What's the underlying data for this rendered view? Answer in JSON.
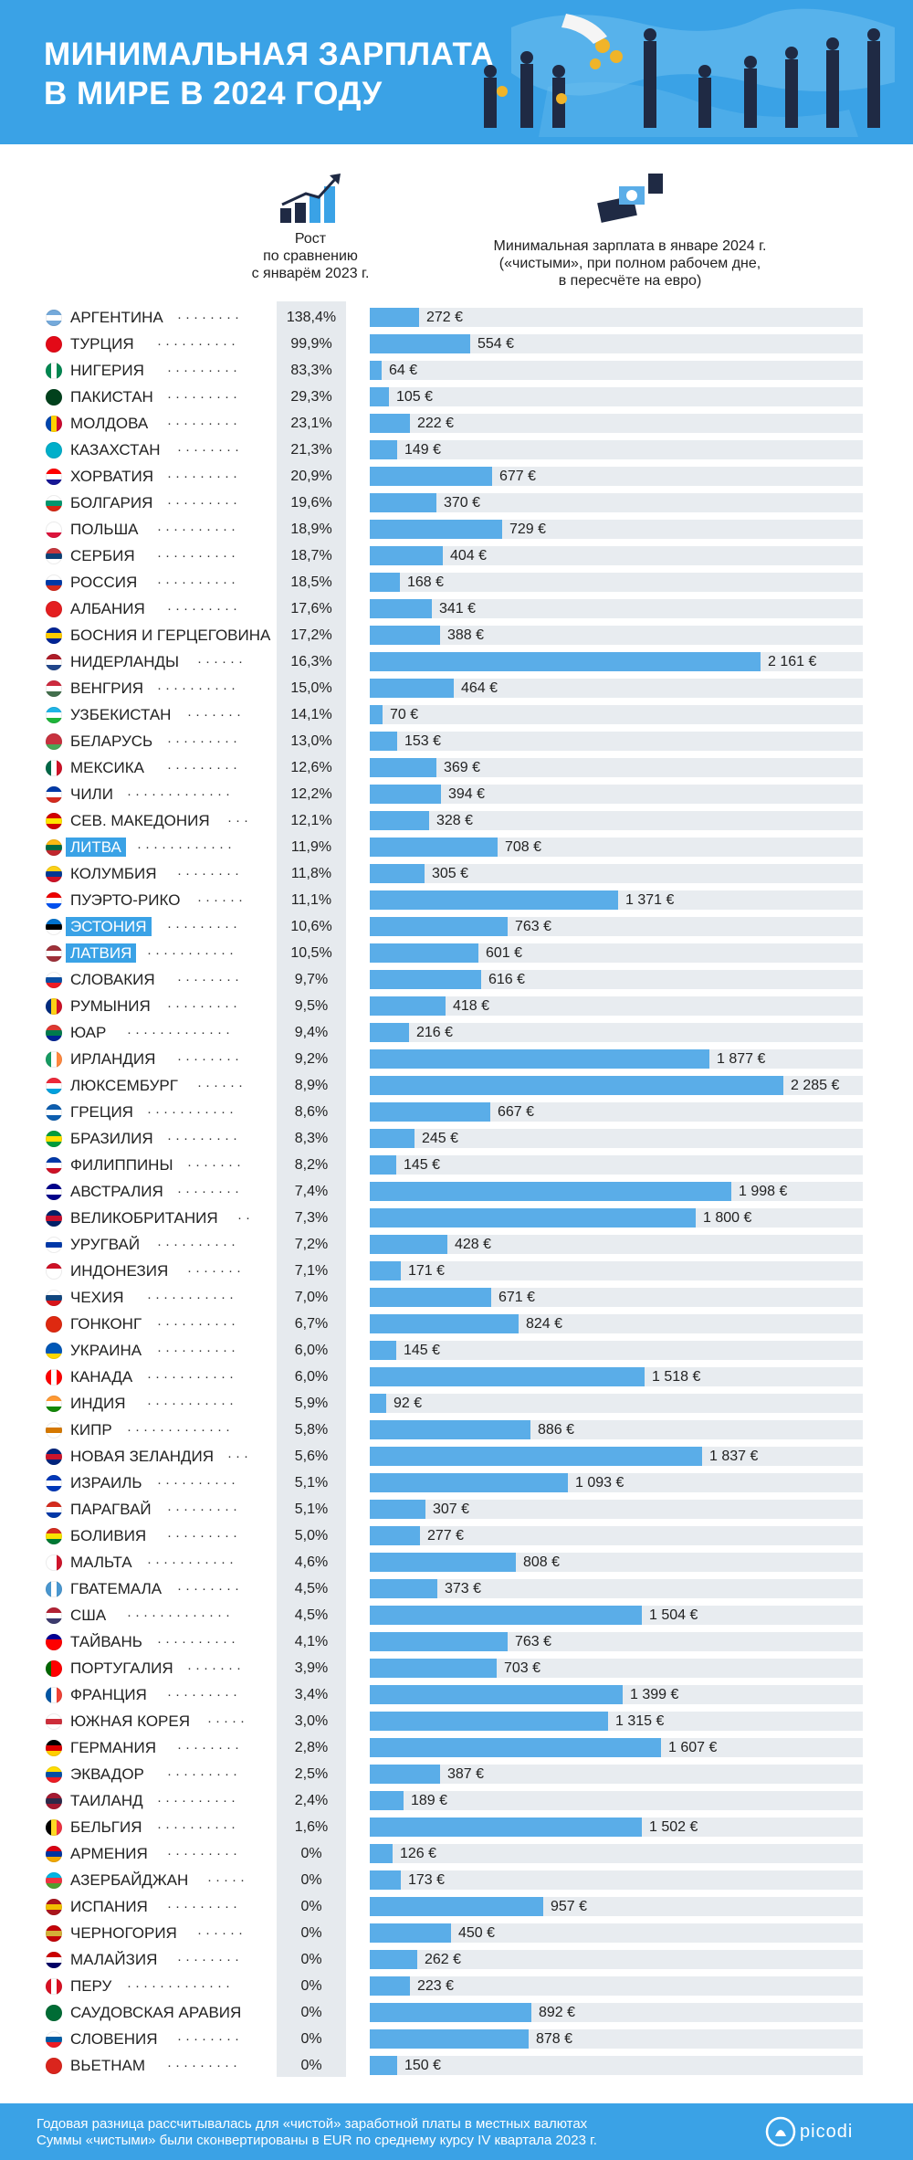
{
  "title_line1": "МИНИМАЛЬНАЯ ЗАРПЛАТА",
  "title_line2": "В МИРЕ В 2024 ГОДУ",
  "growth_header": [
    "Рост",
    "по сравнению",
    "с январём 2023 г."
  ],
  "wage_header": [
    "Минимальная зарплата в январе 2024 г.",
    "(«чистыми», при полном рабочем дне,",
    "в пересчёте на евро)"
  ],
  "footnote_line1": "Годовая разница рассчитывалась для «чистой» заработной платы в местных валютах",
  "footnote_line2": "Суммы «чистыми» были сконвертированы в EUR по среднему курсу IV квартала 2023 г.",
  "logo": "picodi",
  "colors": {
    "header": "#3aa2e6",
    "bar": "#5aade8",
    "highlight": "#3aa2e6"
  },
  "chart_data": {
    "type": "bar",
    "orientation": "horizontal",
    "unit": "€",
    "xlim": [
      0,
      2285
    ],
    "rows": [
      {
        "country": "АРГЕНТИНА",
        "growth": "138,4%",
        "wage": 272,
        "label": "272 €",
        "flag": [
          "#75aadb",
          "#ffffff",
          "#75aadb"
        ]
      },
      {
        "country": "ТУРЦИЯ",
        "growth": "99,9%",
        "wage": 554,
        "label": "554 €",
        "flag": [
          "#e30a17",
          "#e30a17",
          "#e30a17"
        ]
      },
      {
        "country": "НИГЕРИЯ",
        "growth": "83,3%",
        "wage": 64,
        "label": "64 €",
        "flag": [
          "#008751",
          "#ffffff",
          "#008751"
        ],
        "vertical": true
      },
      {
        "country": "ПАКИСТАН",
        "growth": "29,3%",
        "wage": 105,
        "label": "105 €",
        "flag": [
          "#01411c",
          "#01411c",
          "#01411c"
        ]
      },
      {
        "country": "МОЛДОВА",
        "growth": "23,1%",
        "wage": 222,
        "label": "222 €",
        "flag": [
          "#0046ae",
          "#ffd200",
          "#cc092f"
        ],
        "vertical": true
      },
      {
        "country": "КАЗАХСТАН",
        "growth": "21,3%",
        "wage": 149,
        "label": "149 €",
        "flag": [
          "#00afca",
          "#00afca",
          "#00afca"
        ]
      },
      {
        "country": "ХОРВАТИЯ",
        "growth": "20,9%",
        "wage": 677,
        "label": "677 €",
        "flag": [
          "#ff0000",
          "#ffffff",
          "#171796"
        ]
      },
      {
        "country": "БОЛГАРИЯ",
        "growth": "19,6%",
        "wage": 370,
        "label": "370 €",
        "flag": [
          "#ffffff",
          "#00966e",
          "#d62612"
        ]
      },
      {
        "country": "ПОЛЬША",
        "growth": "18,9%",
        "wage": 729,
        "label": "729 €",
        "flag": [
          "#ffffff",
          "#ffffff",
          "#dc143c"
        ]
      },
      {
        "country": "СЕРБИЯ",
        "growth": "18,7%",
        "wage": 404,
        "label": "404 €",
        "flag": [
          "#c6363c",
          "#0c4076",
          "#ffffff"
        ]
      },
      {
        "country": "РОССИЯ",
        "growth": "18,5%",
        "wage": 168,
        "label": "168 €",
        "flag": [
          "#ffffff",
          "#0039a6",
          "#d52b1e"
        ]
      },
      {
        "country": "АЛБАНИЯ",
        "growth": "17,6%",
        "wage": 341,
        "label": "341 €",
        "flag": [
          "#e41e20",
          "#e41e20",
          "#e41e20"
        ]
      },
      {
        "country": "БОСНИЯ И ГЕРЦЕГОВИНА",
        "growth": "17,2%",
        "wage": 388,
        "label": "388 €",
        "flag": [
          "#002395",
          "#fecb00",
          "#002395"
        ]
      },
      {
        "country": "НИДЕРЛАНДЫ",
        "growth": "16,3%",
        "wage": 2161,
        "label": "2 161 €",
        "flag": [
          "#ae1c28",
          "#ffffff",
          "#21468b"
        ]
      },
      {
        "country": "ВЕНГРИЯ",
        "growth": "15,0%",
        "wage": 464,
        "label": "464 €",
        "flag": [
          "#cd2a3e",
          "#ffffff",
          "#436f4d"
        ]
      },
      {
        "country": "УЗБЕКИСТАН",
        "growth": "14,1%",
        "wage": 70,
        "label": "70 €",
        "flag": [
          "#1eb4e6",
          "#ffffff",
          "#1eb53a"
        ]
      },
      {
        "country": "БЕЛАРУСЬ",
        "growth": "13,0%",
        "wage": 153,
        "label": "153 €",
        "flag": [
          "#c8313e",
          "#c8313e",
          "#4aa657"
        ]
      },
      {
        "country": "МЕКСИКА",
        "growth": "12,6%",
        "wage": 369,
        "label": "369 €",
        "flag": [
          "#006847",
          "#ffffff",
          "#ce1126"
        ],
        "vertical": true
      },
      {
        "country": "ЧИЛИ",
        "growth": "12,2%",
        "wage": 394,
        "label": "394 €",
        "flag": [
          "#0039a6",
          "#ffffff",
          "#d52b1e"
        ]
      },
      {
        "country": "СЕВ. МАКЕДОНИЯ",
        "growth": "12,1%",
        "wage": 328,
        "label": "328 €",
        "flag": [
          "#d20000",
          "#ffe600",
          "#d20000"
        ]
      },
      {
        "country": "ЛИТВА",
        "growth": "11,9%",
        "wage": 708,
        "label": "708 €",
        "flag": [
          "#fdb913",
          "#006a44",
          "#c1272d"
        ],
        "highlight": true
      },
      {
        "country": "КОЛУМБИЯ",
        "growth": "11,8%",
        "wage": 305,
        "label": "305 €",
        "flag": [
          "#fcd116",
          "#003893",
          "#ce1126"
        ]
      },
      {
        "country": "ПУЭРТО-РИКО",
        "growth": "11,1%",
        "wage": 1371,
        "label": "1 371 €",
        "flag": [
          "#ed0000",
          "#ffffff",
          "#0050f0"
        ]
      },
      {
        "country": "ЭСТОНИЯ",
        "growth": "10,6%",
        "wage": 763,
        "label": "763 €",
        "flag": [
          "#0072ce",
          "#000000",
          "#ffffff"
        ],
        "highlight": true
      },
      {
        "country": "ЛАТВИЯ",
        "growth": "10,5%",
        "wage": 601,
        "label": "601 €",
        "flag": [
          "#9e3039",
          "#ffffff",
          "#9e3039"
        ],
        "highlight": true
      },
      {
        "country": "СЛОВАКИЯ",
        "growth": "9,7%",
        "wage": 616,
        "label": "616 €",
        "flag": [
          "#ffffff",
          "#0b4ea2",
          "#ee1c25"
        ]
      },
      {
        "country": "РУМЫНИЯ",
        "growth": "9,5%",
        "wage": 418,
        "label": "418 €",
        "flag": [
          "#002b7f",
          "#fcd116",
          "#ce1126"
        ],
        "vertical": true
      },
      {
        "country": "ЮАР",
        "growth": "9,4%",
        "wage": 216,
        "label": "216 €",
        "flag": [
          "#de3831",
          "#007a4d",
          "#002395"
        ]
      },
      {
        "country": "ИРЛАНДИЯ",
        "growth": "9,2%",
        "wage": 1877,
        "label": "1 877 €",
        "flag": [
          "#169b62",
          "#ffffff",
          "#ff883e"
        ],
        "vertical": true
      },
      {
        "country": "ЛЮКСЕМБУРГ",
        "growth": "8,9%",
        "wage": 2285,
        "label": "2 285 €",
        "flag": [
          "#ed2939",
          "#ffffff",
          "#00a1de"
        ]
      },
      {
        "country": "ГРЕЦИЯ",
        "growth": "8,6%",
        "wage": 667,
        "label": "667 €",
        "flag": [
          "#0d5eaf",
          "#ffffff",
          "#0d5eaf"
        ]
      },
      {
        "country": "БРАЗИЛИЯ",
        "growth": "8,3%",
        "wage": 245,
        "label": "245 €",
        "flag": [
          "#009c3b",
          "#ffdf00",
          "#009c3b"
        ]
      },
      {
        "country": "ФИЛИППИНЫ",
        "growth": "8,2%",
        "wage": 145,
        "label": "145 €",
        "flag": [
          "#0038a8",
          "#ffffff",
          "#ce1126"
        ]
      },
      {
        "country": "АВСТРАЛИЯ",
        "growth": "7,4%",
        "wage": 1998,
        "label": "1 998 €",
        "flag": [
          "#00008b",
          "#ffffff",
          "#00008b"
        ]
      },
      {
        "country": "ВЕЛИКОБРИТАНИЯ",
        "growth": "7,3%",
        "wage": 1800,
        "label": "1 800 €",
        "flag": [
          "#012169",
          "#c8102e",
          "#012169"
        ]
      },
      {
        "country": "УРУГВАЙ",
        "growth": "7,2%",
        "wage": 428,
        "label": "428 €",
        "flag": [
          "#ffffff",
          "#0038a8",
          "#ffffff"
        ]
      },
      {
        "country": "ИНДОНЕЗИЯ",
        "growth": "7,1%",
        "wage": 171,
        "label": "171 €",
        "flag": [
          "#ce1126",
          "#ffffff",
          "#ffffff"
        ]
      },
      {
        "country": "ЧЕХИЯ",
        "growth": "7,0%",
        "wage": 671,
        "label": "671 €",
        "flag": [
          "#ffffff",
          "#11457e",
          "#d7141a"
        ]
      },
      {
        "country": "ГОНКОНГ",
        "growth": "6,7%",
        "wage": 824,
        "label": "824 €",
        "flag": [
          "#de2910",
          "#de2910",
          "#de2910"
        ]
      },
      {
        "country": "УКРАИНА",
        "growth": "6,0%",
        "wage": 145,
        "label": "145 €",
        "flag": [
          "#0057b7",
          "#0057b7",
          "#ffd700"
        ]
      },
      {
        "country": "КАНАДА",
        "growth": "6,0%",
        "wage": 1518,
        "label": "1 518 €",
        "flag": [
          "#ff0000",
          "#ffffff",
          "#ff0000"
        ],
        "vertical": true
      },
      {
        "country": "ИНДИЯ",
        "growth": "5,9%",
        "wage": 92,
        "label": "92 €",
        "flag": [
          "#ff9933",
          "#ffffff",
          "#138808"
        ]
      },
      {
        "country": "КИПР",
        "growth": "5,8%",
        "wage": 886,
        "label": "886 €",
        "flag": [
          "#ffffff",
          "#d57800",
          "#ffffff"
        ]
      },
      {
        "country": "НОВАЯ ЗЕЛАНДИЯ",
        "growth": "5,6%",
        "wage": 1837,
        "label": "1 837 €",
        "flag": [
          "#00247d",
          "#cc142b",
          "#00247d"
        ]
      },
      {
        "country": "ИЗРАИЛЬ",
        "growth": "5,1%",
        "wage": 1093,
        "label": "1 093 €",
        "flag": [
          "#0038b8",
          "#ffffff",
          "#0038b8"
        ]
      },
      {
        "country": "ПАРАГВАЙ",
        "growth": "5,1%",
        "wage": 307,
        "label": "307 €",
        "flag": [
          "#d52b1e",
          "#ffffff",
          "#0038a8"
        ]
      },
      {
        "country": "БОЛИВИЯ",
        "growth": "5,0%",
        "wage": 277,
        "label": "277 €",
        "flag": [
          "#d52b1e",
          "#f9e300",
          "#007934"
        ]
      },
      {
        "country": "МАЛЬТА",
        "growth": "4,6%",
        "wage": 808,
        "label": "808 €",
        "flag": [
          "#ffffff",
          "#ffffff",
          "#cf142b"
        ],
        "vertical": true
      },
      {
        "country": "ГВАТЕМАЛА",
        "growth": "4,5%",
        "wage": 373,
        "label": "373 €",
        "flag": [
          "#4997d0",
          "#ffffff",
          "#4997d0"
        ],
        "vertical": true
      },
      {
        "country": "США",
        "growth": "4,5%",
        "wage": 1504,
        "label": "1 504 €",
        "flag": [
          "#b22234",
          "#ffffff",
          "#3c3b6e"
        ]
      },
      {
        "country": "ТАЙВАНЬ",
        "growth": "4,1%",
        "wage": 763,
        "label": "763 €",
        "flag": [
          "#000095",
          "#fe0000",
          "#fe0000"
        ]
      },
      {
        "country": "ПОРТУГАЛИЯ",
        "growth": "3,9%",
        "wage": 703,
        "label": "703 €",
        "flag": [
          "#006600",
          "#ff0000",
          "#ff0000"
        ],
        "vertical": true
      },
      {
        "country": "ФРАНЦИЯ",
        "growth": "3,4%",
        "wage": 1399,
        "label": "1 399 €",
        "flag": [
          "#0055a4",
          "#ffffff",
          "#ef4135"
        ],
        "vertical": true
      },
      {
        "country": "ЮЖНАЯ КОРЕЯ",
        "growth": "3,0%",
        "wage": 1315,
        "label": "1 315 €",
        "flag": [
          "#ffffff",
          "#cd2e3a",
          "#ffffff"
        ]
      },
      {
        "country": "ГЕРМАНИЯ",
        "growth": "2,8%",
        "wage": 1607,
        "label": "1 607 €",
        "flag": [
          "#000000",
          "#dd0000",
          "#ffce00"
        ]
      },
      {
        "country": "ЭКВАДОР",
        "growth": "2,5%",
        "wage": 387,
        "label": "387 €",
        "flag": [
          "#ffdd00",
          "#034ea2",
          "#ed1c24"
        ]
      },
      {
        "country": "ТАИЛАНД",
        "growth": "2,4%",
        "wage": 189,
        "label": "189 €",
        "flag": [
          "#a51931",
          "#2d2a4a",
          "#a51931"
        ]
      },
      {
        "country": "БЕЛЬГИЯ",
        "growth": "1,6%",
        "wage": 1502,
        "label": "1 502 €",
        "flag": [
          "#000000",
          "#fdda24",
          "#ef3340"
        ],
        "vertical": true
      },
      {
        "country": "АРМЕНИЯ",
        "growth": "0%",
        "wage": 126,
        "label": "126 €",
        "flag": [
          "#d90012",
          "#0033a0",
          "#f2a800"
        ]
      },
      {
        "country": "АЗЕРБАЙДЖАН",
        "growth": "0%",
        "wage": 173,
        "label": "173 €",
        "flag": [
          "#00b5e2",
          "#ef3340",
          "#509e2f"
        ]
      },
      {
        "country": "ИСПАНИЯ",
        "growth": "0%",
        "wage": 957,
        "label": "957 €",
        "flag": [
          "#aa151b",
          "#f1bf00",
          "#aa151b"
        ]
      },
      {
        "country": "ЧЕРНОГОРИЯ",
        "growth": "0%",
        "wage": 450,
        "label": "450 €",
        "flag": [
          "#c40308",
          "#d4af37",
          "#c40308"
        ]
      },
      {
        "country": "МАЛАЙЗИЯ",
        "growth": "0%",
        "wage": 262,
        "label": "262 €",
        "flag": [
          "#cc0001",
          "#ffffff",
          "#010066"
        ]
      },
      {
        "country": "ПЕРУ",
        "growth": "0%",
        "wage": 223,
        "label": "223 €",
        "flag": [
          "#d91023",
          "#ffffff",
          "#d91023"
        ],
        "vertical": true
      },
      {
        "country": "САУДОВСКАЯ АРАВИЯ",
        "growth": "0%",
        "wage": 892,
        "label": "892 €",
        "flag": [
          "#006c35",
          "#006c35",
          "#006c35"
        ]
      },
      {
        "country": "СЛОВЕНИЯ",
        "growth": "0%",
        "wage": 878,
        "label": "878 €",
        "flag": [
          "#ffffff",
          "#005da4",
          "#ed1c24"
        ]
      },
      {
        "country": "ВЬЕТНАМ",
        "growth": "0%",
        "wage": 150,
        "label": "150 €",
        "flag": [
          "#da251d",
          "#da251d",
          "#da251d"
        ]
      }
    ]
  }
}
